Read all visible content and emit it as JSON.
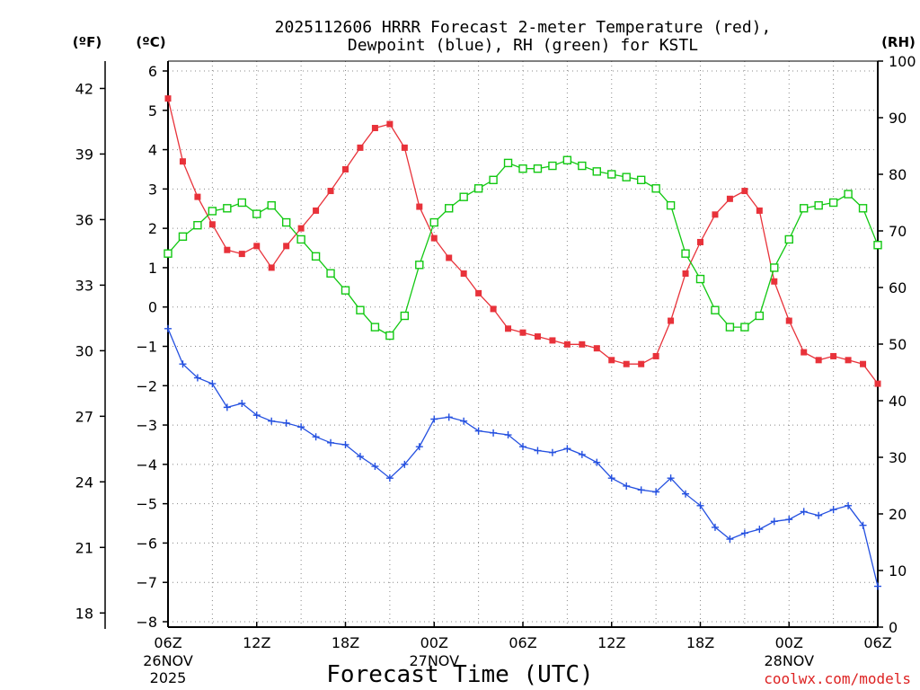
{
  "chart_data": {
    "type": "line",
    "title_lines": [
      "2025112606 HRRR Forecast 2-meter Temperature (red),",
      "Dewpoint (blue), RH (green) for KSTL"
    ],
    "xlabel": "Forecast Time (UTC)",
    "credit": "coolwx.com/models",
    "units": {
      "fahrenheit": "(ºF)",
      "celsius": "(ºC)",
      "rh": "(RH)"
    },
    "hours": [
      0,
      1,
      2,
      3,
      4,
      5,
      6,
      7,
      8,
      9,
      10,
      11,
      12,
      13,
      14,
      15,
      16,
      17,
      18,
      19,
      20,
      21,
      22,
      23,
      24,
      25,
      26,
      27,
      28,
      29,
      30,
      31,
      32,
      33,
      34,
      35,
      36,
      37,
      38,
      39,
      40,
      41,
      42,
      43,
      44,
      45,
      46,
      47,
      48
    ],
    "x_ticks": [
      {
        "hour": 0,
        "label": "06Z",
        "date": "26NOV",
        "year": "2025"
      },
      {
        "hour": 6,
        "label": "12Z"
      },
      {
        "hour": 12,
        "label": "18Z"
      },
      {
        "hour": 18,
        "label": "00Z",
        "date": "27NOV"
      },
      {
        "hour": 24,
        "label": "06Z"
      },
      {
        "hour": 30,
        "label": "12Z"
      },
      {
        "hour": 36,
        "label": "18Z"
      },
      {
        "hour": 42,
        "label": "00Z",
        "date": "28NOV"
      },
      {
        "hour": 48,
        "label": "06Z"
      }
    ],
    "xlim": [
      0,
      48
    ],
    "celsius_axis": {
      "range": [
        -8,
        6
      ],
      "ticks": [
        "−8",
        "−7",
        "−6",
        "−5",
        "−4",
        "−3",
        "−2",
        "−1",
        "0",
        "1",
        "2",
        "3",
        "4",
        "5",
        "6"
      ]
    },
    "fahrenheit_axis": {
      "ticks": [
        "18",
        "21",
        "24",
        "27",
        "30",
        "33",
        "36",
        "39",
        "42"
      ]
    },
    "rh_axis": {
      "range": [
        0,
        100
      ],
      "ticks": [
        "0",
        "10",
        "20",
        "30",
        "40",
        "50",
        "60",
        "70",
        "80",
        "90",
        "100"
      ]
    },
    "grid": true,
    "colors": {
      "temperature": "#e8323a",
      "dewpoint": "#2450e0",
      "rh": "#12c812",
      "grid": "#888888"
    },
    "series": [
      {
        "name": "Temperature",
        "units": "C",
        "marker": "filled-square",
        "values": [
          5.3,
          3.7,
          2.8,
          2.1,
          1.45,
          1.35,
          1.55,
          1.0,
          1.55,
          2.0,
          2.45,
          2.95,
          3.5,
          4.05,
          4.55,
          4.65,
          4.05,
          2.55,
          1.75,
          1.25,
          0.85,
          0.35,
          -0.05,
          -0.55,
          -0.65,
          -0.75,
          -0.85,
          -0.95,
          -0.95,
          -1.05,
          -1.35,
          -1.45,
          -1.45,
          -1.25,
          -0.35,
          0.85,
          1.65,
          2.35,
          2.75,
          2.95,
          2.45,
          0.65,
          -0.35,
          -1.15,
          -1.35,
          -1.25,
          -1.35,
          -1.45,
          -1.95
        ]
      },
      {
        "name": "Dewpoint",
        "units": "C",
        "marker": "plus",
        "values": [
          -0.55,
          -1.45,
          -1.8,
          -1.95,
          -2.55,
          -2.45,
          -2.75,
          -2.9,
          -2.95,
          -3.05,
          -3.3,
          -3.45,
          -3.5,
          -3.8,
          -4.05,
          -4.35,
          -4.0,
          -3.55,
          -2.85,
          -2.8,
          -2.9,
          -3.15,
          -3.2,
          -3.25,
          -3.55,
          -3.65,
          -3.7,
          -3.6,
          -3.75,
          -3.95,
          -4.35,
          -4.55,
          -4.65,
          -4.7,
          -4.35,
          -4.75,
          -5.05,
          -5.6,
          -5.9,
          -5.75,
          -5.65,
          -5.45,
          -5.4,
          -5.2,
          -5.3,
          -5.15,
          -5.05,
          -5.55,
          -7.1
        ]
      },
      {
        "name": "RH",
        "units": "%",
        "marker": "open-square",
        "values": [
          66,
          69,
          71,
          73.5,
          74,
          75,
          73,
          74.5,
          71.5,
          68.5,
          65.5,
          62.5,
          59.5,
          56,
          53,
          51.5,
          55,
          64,
          71.5,
          74,
          76,
          77.5,
          79,
          82,
          81,
          81,
          81.5,
          82.5,
          81.5,
          80.5,
          80,
          79.5,
          79,
          77.5,
          74.5,
          66,
          61.5,
          56,
          53,
          53,
          55,
          63.5,
          68.5,
          74,
          74.5,
          75,
          76.5,
          74,
          67.5
        ]
      }
    ]
  }
}
